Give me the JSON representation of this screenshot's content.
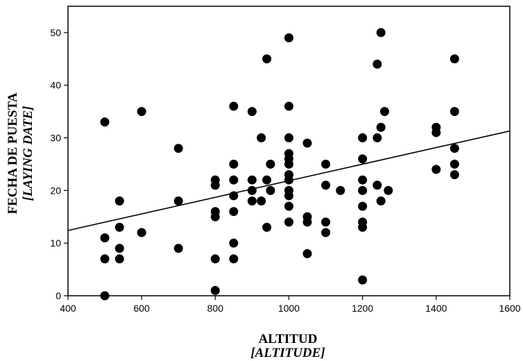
{
  "chart_data": {
    "type": "scatter",
    "title": "",
    "xlabel": "ALTITUD",
    "xlabel_en": "[ALTITUDE]",
    "ylabel": "FECHA DE PUESTA",
    "ylabel_en": "[LAYING DATE]",
    "xlim": [
      400,
      1600
    ],
    "ylim": [
      0,
      55
    ],
    "xticks": [
      "400",
      "600",
      "800",
      "1000",
      "1200",
      "1400",
      "1600"
    ],
    "yticks": [
      "0",
      "10",
      "20",
      "30",
      "40",
      "50"
    ],
    "grid": false,
    "legend": "none",
    "marker_color": "#000000",
    "points": [
      {
        "x": 500,
        "y": 33
      },
      {
        "x": 500,
        "y": 11
      },
      {
        "x": 500,
        "y": 7
      },
      {
        "x": 500,
        "y": 0
      },
      {
        "x": 540,
        "y": 18
      },
      {
        "x": 540,
        "y": 13
      },
      {
        "x": 540,
        "y": 9
      },
      {
        "x": 540,
        "y": 7
      },
      {
        "x": 600,
        "y": 35
      },
      {
        "x": 600,
        "y": 12
      },
      {
        "x": 700,
        "y": 28
      },
      {
        "x": 700,
        "y": 18
      },
      {
        "x": 700,
        "y": 9
      },
      {
        "x": 800,
        "y": 22
      },
      {
        "x": 800,
        "y": 21
      },
      {
        "x": 800,
        "y": 16
      },
      {
        "x": 800,
        "y": 15
      },
      {
        "x": 800,
        "y": 7
      },
      {
        "x": 800,
        "y": 1
      },
      {
        "x": 850,
        "y": 36
      },
      {
        "x": 850,
        "y": 25
      },
      {
        "x": 850,
        "y": 22
      },
      {
        "x": 850,
        "y": 19
      },
      {
        "x": 850,
        "y": 16
      },
      {
        "x": 850,
        "y": 10
      },
      {
        "x": 850,
        "y": 7
      },
      {
        "x": 900,
        "y": 35
      },
      {
        "x": 900,
        "y": 22
      },
      {
        "x": 900,
        "y": 20
      },
      {
        "x": 900,
        "y": 18
      },
      {
        "x": 925,
        "y": 30
      },
      {
        "x": 925,
        "y": 18
      },
      {
        "x": 940,
        "y": 45
      },
      {
        "x": 940,
        "y": 22
      },
      {
        "x": 940,
        "y": 13
      },
      {
        "x": 950,
        "y": 25
      },
      {
        "x": 950,
        "y": 20
      },
      {
        "x": 1000,
        "y": 49
      },
      {
        "x": 1000,
        "y": 36
      },
      {
        "x": 1000,
        "y": 30
      },
      {
        "x": 1000,
        "y": 27
      },
      {
        "x": 1000,
        "y": 26
      },
      {
        "x": 1000,
        "y": 25
      },
      {
        "x": 1000,
        "y": 23
      },
      {
        "x": 1000,
        "y": 22
      },
      {
        "x": 1000,
        "y": 20
      },
      {
        "x": 1000,
        "y": 19
      },
      {
        "x": 1000,
        "y": 17
      },
      {
        "x": 1000,
        "y": 14
      },
      {
        "x": 1050,
        "y": 29
      },
      {
        "x": 1050,
        "y": 15
      },
      {
        "x": 1050,
        "y": 14
      },
      {
        "x": 1050,
        "y": 8
      },
      {
        "x": 1100,
        "y": 25
      },
      {
        "x": 1100,
        "y": 21
      },
      {
        "x": 1100,
        "y": 14
      },
      {
        "x": 1100,
        "y": 12
      },
      {
        "x": 1140,
        "y": 20
      },
      {
        "x": 1200,
        "y": 30
      },
      {
        "x": 1200,
        "y": 26
      },
      {
        "x": 1200,
        "y": 22
      },
      {
        "x": 1200,
        "y": 20
      },
      {
        "x": 1200,
        "y": 17
      },
      {
        "x": 1200,
        "y": 14
      },
      {
        "x": 1200,
        "y": 13
      },
      {
        "x": 1200,
        "y": 3
      },
      {
        "x": 1240,
        "y": 44
      },
      {
        "x": 1240,
        "y": 30
      },
      {
        "x": 1240,
        "y": 21
      },
      {
        "x": 1250,
        "y": 50
      },
      {
        "x": 1250,
        "y": 32
      },
      {
        "x": 1250,
        "y": 18
      },
      {
        "x": 1260,
        "y": 35
      },
      {
        "x": 1270,
        "y": 20
      },
      {
        "x": 1400,
        "y": 32
      },
      {
        "x": 1400,
        "y": 31
      },
      {
        "x": 1400,
        "y": 24
      },
      {
        "x": 1450,
        "y": 45
      },
      {
        "x": 1450,
        "y": 35
      },
      {
        "x": 1450,
        "y": 28
      },
      {
        "x": 1450,
        "y": 25
      },
      {
        "x": 1450,
        "y": 23
      }
    ],
    "trendline": {
      "x": [
        400,
        1600
      ],
      "y": [
        12.4,
        31.3
      ]
    }
  }
}
